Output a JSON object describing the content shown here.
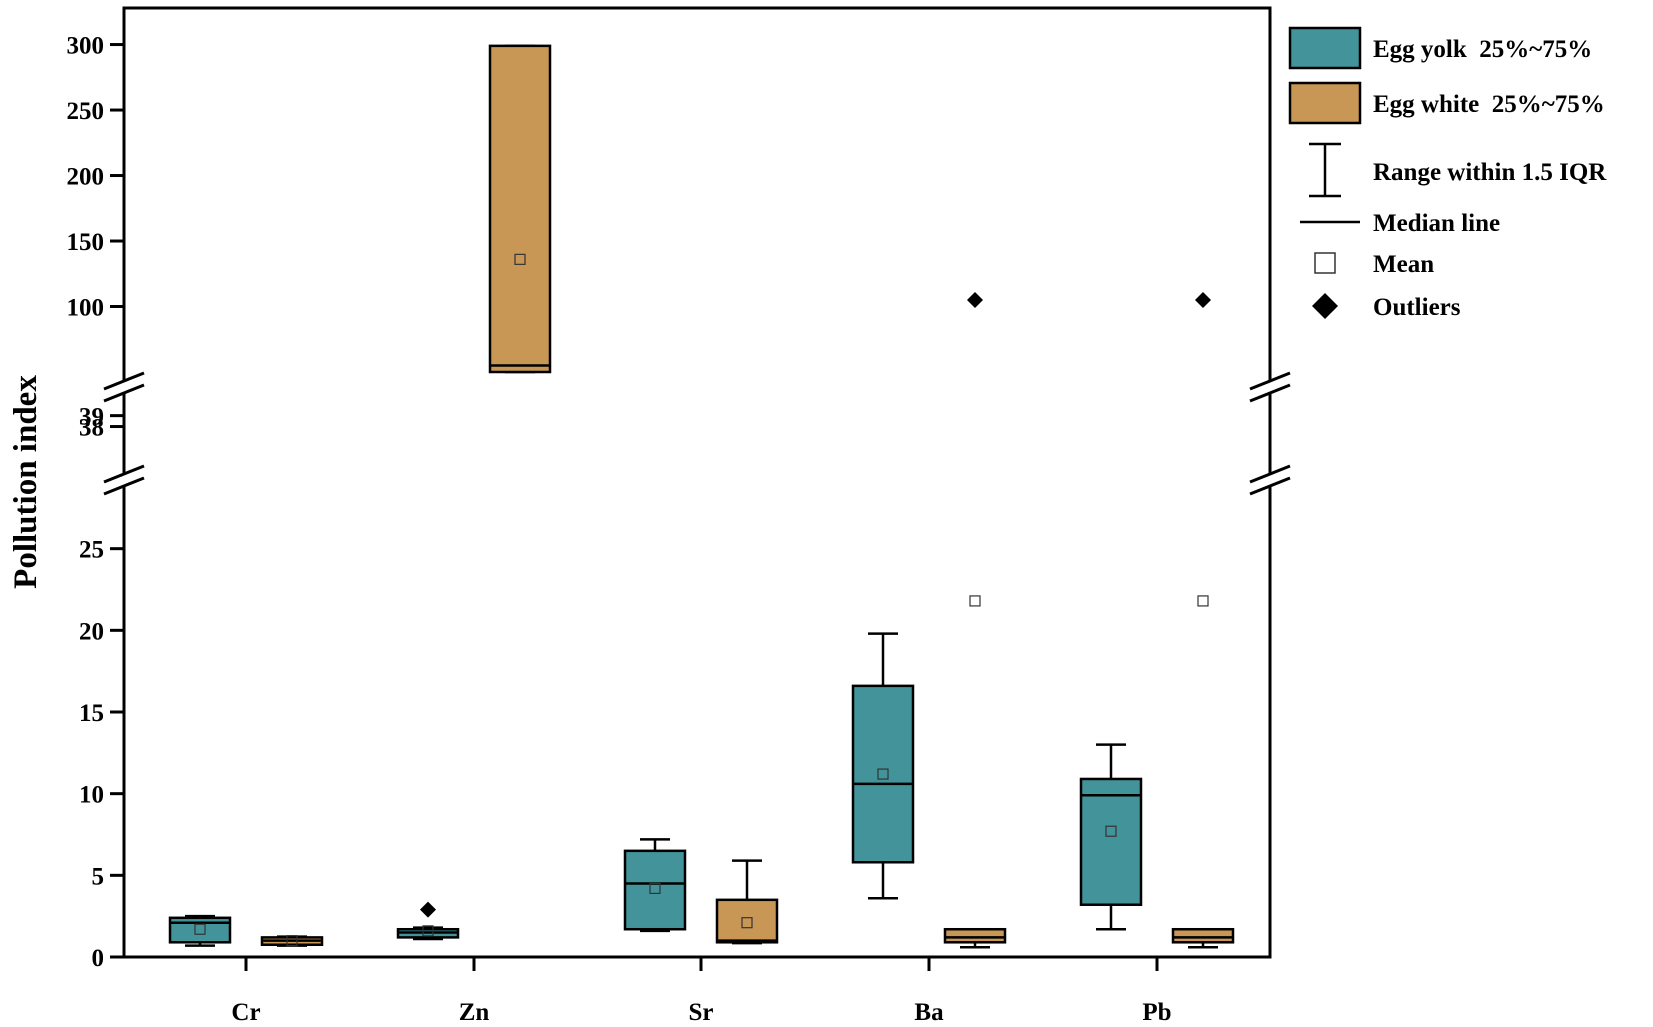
{
  "chart_data": {
    "type": "box",
    "ylabel": "Pollution index",
    "categories": [
      "Cr",
      "Zn",
      "Sr",
      "Ba",
      "Pb"
    ],
    "y_axis": {
      "broken": true,
      "segments": [
        {
          "range": [
            0,
            27
          ],
          "ticks": [
            0,
            5,
            10,
            15,
            20,
            25
          ]
        },
        {
          "range": [
            37.5,
            39.7
          ],
          "ticks": [
            38,
            39
          ]
        },
        {
          "range": [
            50,
            305
          ],
          "ticks": [
            100,
            150,
            200,
            250,
            300
          ]
        }
      ]
    },
    "legend": {
      "position": "right",
      "items": [
        {
          "label": "Egg yolk  25%~75%",
          "kind": "box",
          "color": "#42949a"
        },
        {
          "label": "Egg white  25%~75%",
          "kind": "box",
          "color": "#c99755"
        },
        {
          "label": "Range within 1.5 IQR",
          "kind": "whisker"
        },
        {
          "label": "Median line",
          "kind": "median"
        },
        {
          "label": "Mean",
          "kind": "mean"
        },
        {
          "label": "Outliers",
          "kind": "outlier"
        }
      ]
    },
    "series": [
      {
        "name": "Egg yolk",
        "color": "#42949a",
        "boxes": [
          {
            "category": "Cr",
            "whisker_low": 0.7,
            "q1": 0.9,
            "median": 2.1,
            "q3": 2.4,
            "whisker_high": 2.5,
            "mean": 1.7,
            "outliers": []
          },
          {
            "category": "Zn",
            "whisker_low": 1.1,
            "q1": 1.2,
            "median": 1.5,
            "q3": 1.7,
            "whisker_high": 1.8,
            "mean": 1.6,
            "outliers": [
              2.9
            ]
          },
          {
            "category": "Sr",
            "whisker_low": 1.6,
            "q1": 1.7,
            "median": 4.5,
            "q3": 6.5,
            "whisker_high": 7.2,
            "mean": 4.2,
            "outliers": []
          },
          {
            "category": "Ba",
            "whisker_low": 3.6,
            "q1": 5.8,
            "median": 10.6,
            "q3": 16.6,
            "whisker_high": 19.8,
            "mean": 11.2,
            "outliers": []
          },
          {
            "category": "Pb",
            "whisker_low": 1.7,
            "q1": 3.2,
            "median": 9.9,
            "q3": 10.9,
            "whisker_high": 13.0,
            "mean": 7.7,
            "outliers": []
          }
        ]
      },
      {
        "name": "Egg white",
        "color": "#c99755",
        "boxes": [
          {
            "category": "Cr",
            "whisker_low": 0.7,
            "q1": 0.75,
            "median": 1.0,
            "q3": 1.2,
            "whisker_high": 1.25,
            "mean": 1.0,
            "outliers": []
          },
          {
            "category": "Zn",
            "whisker_low": 50,
            "q1": 50,
            "median": 55,
            "q3": 299,
            "whisker_high": 299,
            "mean": 136,
            "outliers": []
          },
          {
            "category": "Sr",
            "whisker_low": 0.85,
            "q1": 0.9,
            "median": 1.0,
            "q3": 3.5,
            "whisker_high": 5.9,
            "mean": 2.1,
            "outliers": []
          },
          {
            "category": "Ba",
            "whisker_low": 0.6,
            "q1": 0.9,
            "median": 1.2,
            "q3": 1.7,
            "whisker_high": 1.7,
            "mean": 21.8,
            "outliers": [
              105
            ]
          },
          {
            "category": "Pb",
            "whisker_low": 0.6,
            "q1": 0.9,
            "median": 1.2,
            "q3": 1.7,
            "whisker_high": 1.7,
            "mean": 21.8,
            "outliers": [
              105
            ]
          }
        ]
      }
    ]
  }
}
